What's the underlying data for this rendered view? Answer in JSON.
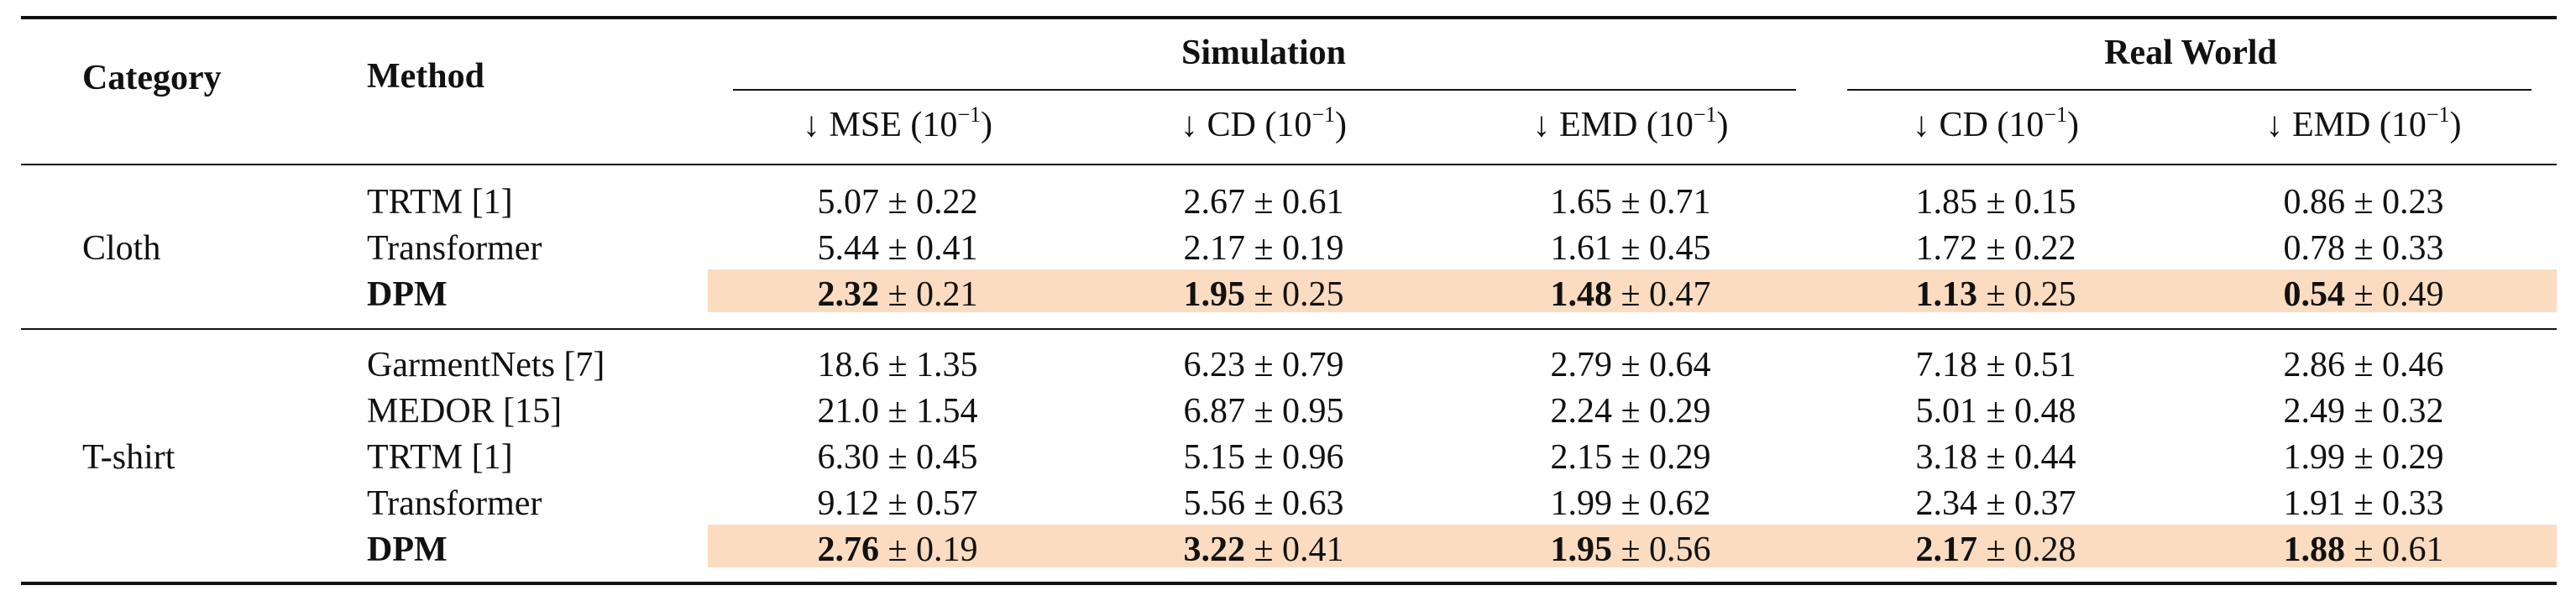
{
  "headers": {
    "category": "Category",
    "method": "Method",
    "group_sim": "Simulation",
    "group_real": "Real World",
    "sub": [
      {
        "arrow": "↓",
        "label": "MSE",
        "unit": "(10",
        "exp": "−1",
        "close": ")"
      },
      {
        "arrow": "↓",
        "label": "CD",
        "unit": "(10",
        "exp": "−1",
        "close": ")"
      },
      {
        "arrow": "↓",
        "label": "EMD",
        "unit": "(10",
        "exp": "−1",
        "close": ")"
      },
      {
        "arrow": "↓",
        "label": "CD",
        "unit": "(10",
        "exp": "−1",
        "close": ")"
      },
      {
        "arrow": "↓",
        "label": "EMD",
        "unit": "(10",
        "exp": "−1",
        "close": ")"
      }
    ]
  },
  "groups": [
    {
      "category": "Cloth",
      "rows": [
        {
          "method": "TRTM [1]",
          "best": false,
          "cells": [
            [
              "5.07",
              "± 0.22"
            ],
            [
              "2.67",
              "± 0.61"
            ],
            [
              "1.65",
              "± 0.71"
            ],
            [
              "1.85",
              "± 0.15"
            ],
            [
              "0.86",
              "± 0.23"
            ]
          ]
        },
        {
          "method": "Transformer",
          "best": false,
          "cells": [
            [
              "5.44",
              "± 0.41"
            ],
            [
              "2.17",
              "± 0.19"
            ],
            [
              "1.61",
              "± 0.45"
            ],
            [
              "1.72",
              "± 0.22"
            ],
            [
              "0.78",
              "± 0.33"
            ]
          ]
        },
        {
          "method": "DPM",
          "best": true,
          "cells": [
            [
              "2.32",
              "± 0.21"
            ],
            [
              "1.95",
              "± 0.25"
            ],
            [
              "1.48",
              "± 0.47"
            ],
            [
              "1.13",
              "± 0.25"
            ],
            [
              "0.54",
              "± 0.49"
            ]
          ]
        }
      ]
    },
    {
      "category": "T-shirt",
      "rows": [
        {
          "method": "GarmentNets [7]",
          "best": false,
          "cells": [
            [
              "18.6",
              "± 1.35"
            ],
            [
              "6.23",
              "± 0.79"
            ],
            [
              "2.79",
              "± 0.64"
            ],
            [
              "7.18",
              "± 0.51"
            ],
            [
              "2.86",
              "± 0.46"
            ]
          ]
        },
        {
          "method": "MEDOR [15]",
          "best": false,
          "cells": [
            [
              "21.0",
              "± 1.54"
            ],
            [
              "6.87",
              "± 0.95"
            ],
            [
              "2.24",
              "± 0.29"
            ],
            [
              "5.01",
              "± 0.48"
            ],
            [
              "2.49",
              "± 0.32"
            ]
          ]
        },
        {
          "method": "TRTM [1]",
          "best": false,
          "cells": [
            [
              "6.30",
              "± 0.45"
            ],
            [
              "5.15",
              "± 0.96"
            ],
            [
              "2.15",
              "± 0.29"
            ],
            [
              "3.18",
              "± 0.44"
            ],
            [
              "1.99",
              "± 0.29"
            ]
          ]
        },
        {
          "method": "Transformer",
          "best": false,
          "cells": [
            [
              "9.12",
              "± 0.57"
            ],
            [
              "5.56",
              "± 0.63"
            ],
            [
              "1.99",
              "± 0.62"
            ],
            [
              "2.34",
              "± 0.37"
            ],
            [
              "1.91",
              "± 0.33"
            ]
          ]
        },
        {
          "method": "DPM",
          "best": true,
          "cells": [
            [
              "2.76",
              "± 0.19"
            ],
            [
              "3.22",
              "± 0.41"
            ],
            [
              "1.95",
              "± 0.56"
            ],
            [
              "2.17",
              "± 0.28"
            ],
            [
              "1.88",
              "± 0.61"
            ]
          ]
        }
      ]
    }
  ],
  "colors": {
    "highlight": "#fbdcc0",
    "rule": "#111111"
  }
}
